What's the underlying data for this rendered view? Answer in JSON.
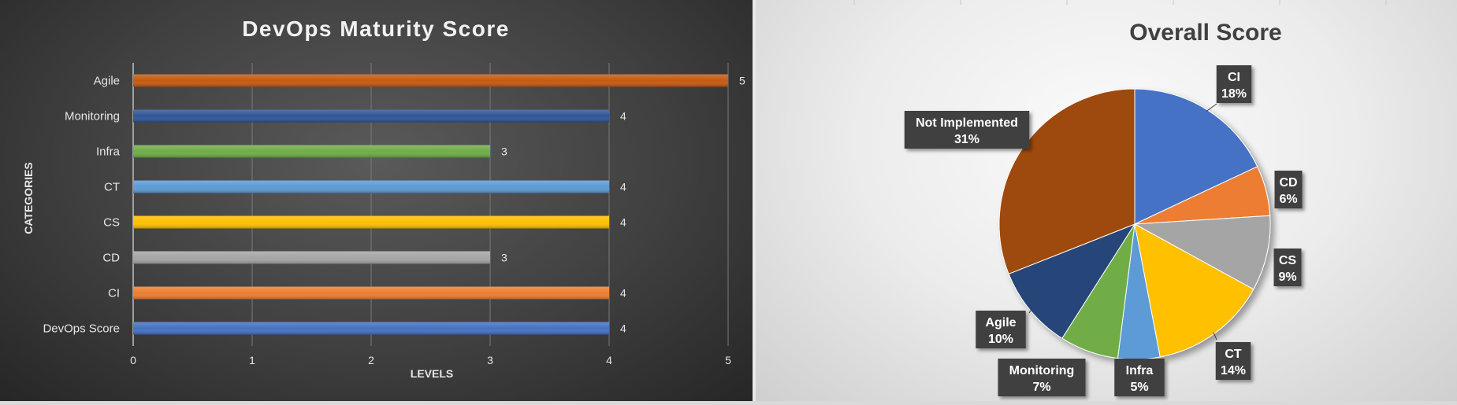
{
  "bar_chart": {
    "title": "DevOps Maturity Score",
    "ylabel": "CATEGORIES",
    "xlabel": "LEVELS"
  },
  "pie_chart": {
    "title": "Overall Score"
  },
  "chart_data": [
    {
      "type": "bar",
      "orientation": "horizontal",
      "title": "DevOps Maturity Score",
      "xlabel": "LEVELS",
      "ylabel": "CATEGORIES",
      "categories": [
        "Agile",
        "Monitoring",
        "Infra",
        "CT",
        "CS",
        "CD",
        "CI",
        "DevOps Score"
      ],
      "values": [
        5,
        4,
        3,
        4,
        4,
        3,
        4,
        4
      ],
      "colors": [
        "#c55a11",
        "#2f5597",
        "#70ad47",
        "#5b9bd5",
        "#ffc000",
        "#a5a5a5",
        "#ed7d31",
        "#4472c4"
      ],
      "xlim": [
        0,
        5
      ],
      "xticks": [
        "0",
        "1",
        "2",
        "3",
        "4",
        "5"
      ],
      "value_labels": [
        "5",
        "4",
        "3",
        "4",
        "4",
        "3",
        "4",
        "4"
      ],
      "grid": true,
      "legend": "none"
    },
    {
      "type": "pie",
      "title": "Overall Score",
      "slices": [
        {
          "label": "CI",
          "value": 18,
          "text": "18%",
          "color": "#4472c4"
        },
        {
          "label": "CD",
          "value": 6,
          "text": "6%",
          "color": "#ed7d31"
        },
        {
          "label": "CS",
          "value": 9,
          "text": "9%",
          "color": "#a5a5a5"
        },
        {
          "label": "CT",
          "value": 14,
          "text": "14%",
          "color": "#ffc000"
        },
        {
          "label": "Infra",
          "value": 5,
          "text": "5%",
          "color": "#5b9bd5"
        },
        {
          "label": "Monitoring",
          "value": 7,
          "text": "7%",
          "color": "#70ad47"
        },
        {
          "label": "Agile",
          "value": 10,
          "text": "10%",
          "color": "#264478"
        },
        {
          "label": "Not Implemented",
          "value": 31,
          "text": "31%",
          "color": "#9e480e"
        }
      ],
      "legend": "none"
    }
  ]
}
